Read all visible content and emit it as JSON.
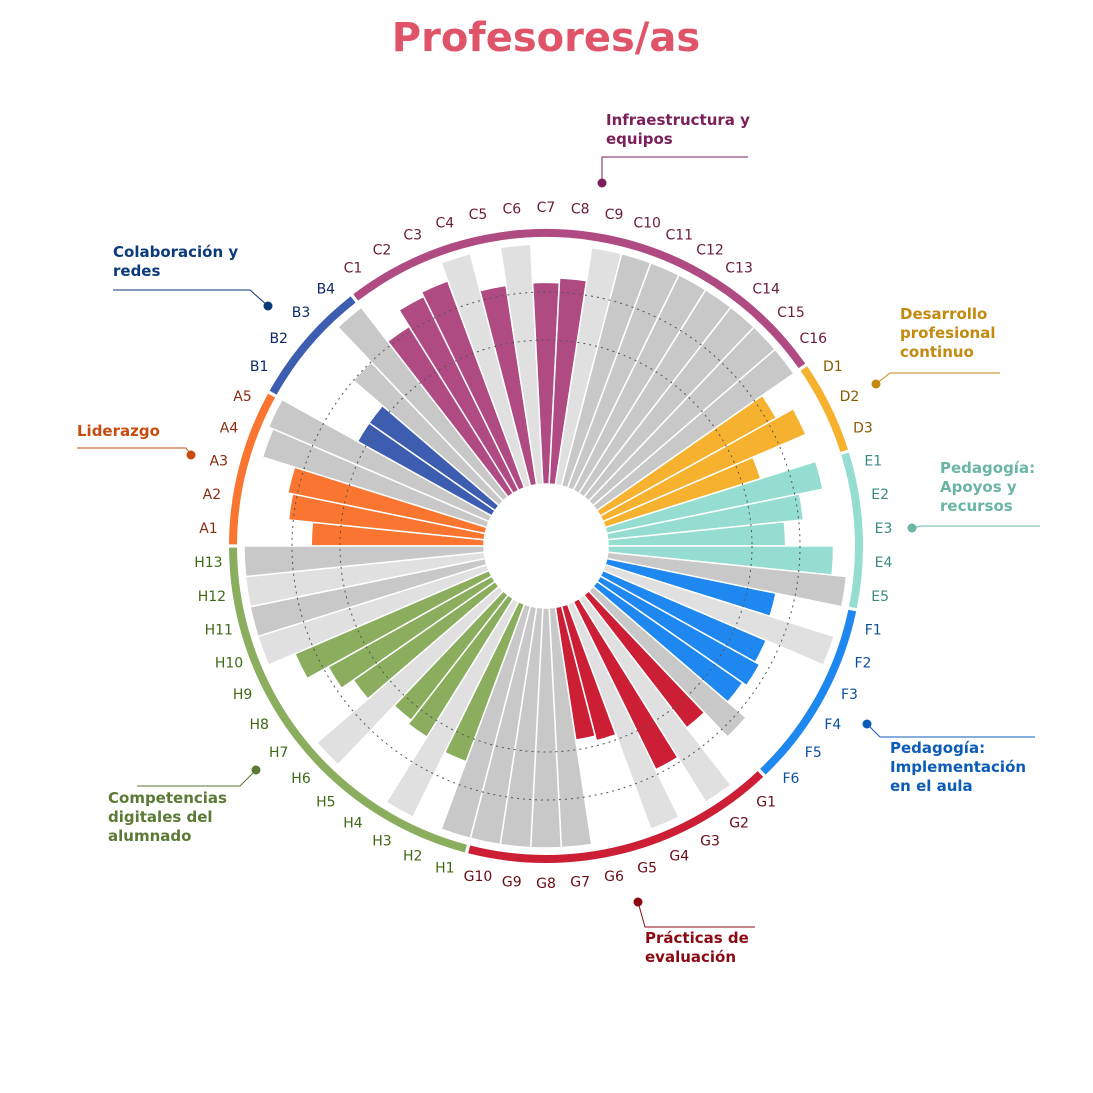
{
  "chart_data": {
    "type": "radial_bar",
    "title": "Profesores/as",
    "ylim": [
      0,
      5
    ],
    "yticks": [
      3,
      4
    ],
    "series": [
      {
        "name": "Liderazgo",
        "color": "#f97530",
        "label_color": "#8b2a10",
        "name_color": "#c84b10",
        "categories": [
          "A1",
          "A2",
          "A3",
          "A4",
          "A5"
        ],
        "values": [
          3.6,
          4.1,
          4.2,
          4.9,
          5.0
        ],
        "colors": [
          "#f97530",
          "#f97530",
          "#f97530",
          "#c8c8c8",
          "#c8c8c8"
        ]
      },
      {
        "name": "Colaboración y redes",
        "color": "#3d5db0",
        "label_color": "#0b2a6a",
        "name_color": "#0b3a7a",
        "categories": [
          "B1",
          "B2",
          "B3",
          "B4"
        ],
        "values": [
          3.2,
          3.2,
          4.0,
          5.0
        ],
        "colors": [
          "#3d5db0",
          "#3d5db0",
          "#c8c8c8",
          "#c8c8c8"
        ]
      },
      {
        "name": "Infraestructura y equipos",
        "color": "#b04a82",
        "label_color": "#6b1a3d",
        "name_color": "#7a1f5a",
        "categories": [
          "C1",
          "C2",
          "C3",
          "C4",
          "C5",
          "C6",
          "C7",
          "C8",
          "C9",
          "C10",
          "C11",
          "C12",
          "C13",
          "C14",
          "C15",
          "C16"
        ],
        "values": [
          4.1,
          4.5,
          4.6,
          5.0,
          4.2,
          5.0,
          4.2,
          4.3,
          5.0,
          5.0,
          5.0,
          5.0,
          5.0,
          5.0,
          5.0,
          5.0
        ],
        "colors": [
          "#b04a82",
          "#b04a82",
          "#b04a82",
          "#e0e0e0",
          "#b04a82",
          "#e0e0e0",
          "#b04a82",
          "#b04a82",
          "#e0e0e0",
          "#c8c8c8",
          "#c8c8c8",
          "#c8c8c8",
          "#c8c8c8",
          "#c8c8c8",
          "#c8c8c8",
          "#c8c8c8"
        ]
      },
      {
        "name": "Desarrollo profesional continuo",
        "color": "#f6b22f",
        "label_color": "#8a5a00",
        "name_color": "#c48a10",
        "categories": [
          "D1",
          "D2",
          "D3"
        ],
        "values": [
          4.2,
          4.6,
          3.4
        ],
        "colors": [
          "#f6b22f",
          "#f6b22f",
          "#f6b22f"
        ]
      },
      {
        "name": "Pedagogía: Apoyos y recursos",
        "color": "#94ddd0",
        "label_color": "#3a8a80",
        "name_color": "#6ab5a5",
        "categories": [
          "E1",
          "E2",
          "E3",
          "E4",
          "E5"
        ],
        "values": [
          4.6,
          4.1,
          3.7,
          4.7,
          5.0
        ],
        "colors": [
          "#94ddd0",
          "#94ddd0",
          "#94ddd0",
          "#94ddd0",
          "#c8c8c8"
        ]
      },
      {
        "name": "Pedagogía: Implementación en el aula",
        "color": "#1e88f0",
        "label_color": "#0b4fa0",
        "name_color": "#0b5cb8",
        "categories": [
          "F1",
          "F2",
          "F3",
          "F4",
          "F5",
          "F6"
        ],
        "values": [
          3.6,
          5.0,
          3.7,
          3.8,
          3.7,
          4.2
        ],
        "colors": [
          "#1e88f0",
          "#e0e0e0",
          "#1e88f0",
          "#1e88f0",
          "#1e88f0",
          "#c8c8c8"
        ]
      },
      {
        "name": "Prácticas de evaluación",
        "color": "#cc1f35",
        "label_color": "#6b0a14",
        "name_color": "#8a0a14",
        "categories": [
          "G1",
          "G2",
          "G3",
          "G4",
          "G5",
          "G6",
          "G7",
          "G8",
          "G9",
          "G10"
        ],
        "values": [
          3.5,
          5.0,
          3.9,
          5.0,
          2.9,
          2.8,
          5.0,
          5.0,
          5.0,
          5.0
        ],
        "colors": [
          "#cc1f35",
          "#e0e0e0",
          "#cc1f35",
          "#e0e0e0",
          "#cc1f35",
          "#cc1f35",
          "#c8c8c8",
          "#c8c8c8",
          "#c8c8c8",
          "#c8c8c8"
        ]
      },
      {
        "name": "Competencias digitales del alumnado",
        "color": "#8aad5e",
        "label_color": "#3f6a15",
        "name_color": "#5a7a35",
        "categories": [
          "H1",
          "H2",
          "H3",
          "H4",
          "H5",
          "H6",
          "H7",
          "H8",
          "H9",
          "H10",
          "H11",
          "H12",
          "H13"
        ],
        "values": [
          5.0,
          3.5,
          5.0,
          3.4,
          3.3,
          5.0,
          3.6,
          3.9,
          4.4,
          5.0,
          5.0,
          5.0,
          5.0
        ],
        "colors": [
          "#c8c8c8",
          "#8aad5e",
          "#e0e0e0",
          "#8aad5e",
          "#8aad5e",
          "#e0e0e0",
          "#8aad5e",
          "#8aad5e",
          "#8aad5e",
          "#e0e0e0",
          "#c8c8c8",
          "#e0e0e0",
          "#c8c8c8"
        ]
      }
    ]
  }
}
